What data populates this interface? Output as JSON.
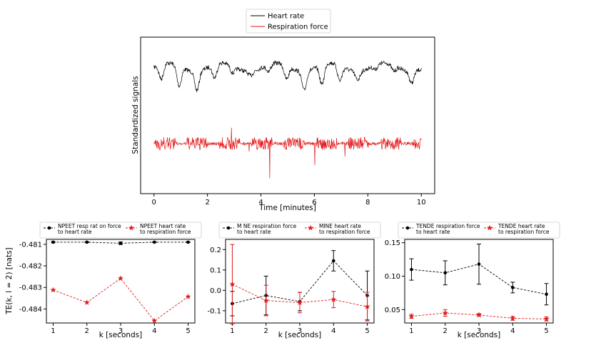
{
  "chart_data": [
    {
      "type": "line",
      "xlabel": "Time [minutes]",
      "ylabel": "Standardized signals",
      "xlim": [
        -0.5,
        10.5
      ],
      "xticks": [
        "0",
        "2",
        "4",
        "6",
        "8",
        "10"
      ],
      "yticks": [],
      "legend": "top",
      "series": [
        {
          "name": "Heart rate",
          "color": "#000000",
          "offset": 0.78
        },
        {
          "name": "Respiration force",
          "color": "#e31a1c",
          "offset": 0.32
        }
      ]
    },
    {
      "type": "line",
      "xlabel": "k [seconds]",
      "ylabel": "TE(k, l = 2) [nats]",
      "xlim": [
        0.8,
        5.2
      ],
      "ylim": [
        -0.48465,
        -0.48077
      ],
      "xticks": [
        "1",
        "2",
        "3",
        "4",
        "5"
      ],
      "yticks": [
        "-0.481",
        "-0.482",
        "-0.483",
        "-0.484"
      ],
      "ytick_values": [
        -0.481,
        -0.482,
        -0.483,
        -0.484
      ],
      "legend": "top",
      "series": [
        {
          "name": "NPEET respiration force to heart rate",
          "label_lines": [
            "NPEET resp rat on force",
            "to heart rate"
          ],
          "color": "#000000",
          "marker": "dot",
          "x": [
            1,
            2,
            3,
            4,
            5
          ],
          "y": [
            -0.4809,
            -0.4809,
            -0.48095,
            -0.4809,
            -0.4809
          ],
          "err": [
            3e-05,
            2e-05,
            6e-05,
            2e-05,
            2e-05
          ]
        },
        {
          "name": "NPEET heart rate to respiration force",
          "label_lines": [
            "NPEET heart rate",
            "to respiration force"
          ],
          "color": "#e31a1c",
          "marker": "star",
          "x": [
            1,
            2,
            3,
            4,
            5
          ],
          "y": [
            -0.48312,
            -0.4837,
            -0.48258,
            -0.48455,
            -0.48343
          ],
          "err": [
            0,
            0,
            0,
            0,
            0
          ]
        }
      ]
    },
    {
      "type": "line",
      "xlabel": "k [seconds]",
      "ylabel": "",
      "xlim": [
        0.8,
        5.2
      ],
      "ylim": [
        -0.16,
        0.25
      ],
      "xticks": [
        "1",
        "2",
        "3",
        "4",
        "5"
      ],
      "yticks": [
        "0.2",
        "0.1",
        "0.0",
        "-0.1"
      ],
      "ytick_values": [
        0.2,
        0.1,
        0.0,
        -0.1
      ],
      "legend": "top",
      "series": [
        {
          "name": "MINE respiration force to heart rate",
          "label_lines": [
            "M NE respiration force",
            "to heart rate"
          ],
          "color": "#000000",
          "marker": "dot",
          "x": [
            1,
            2,
            3,
            4,
            5
          ],
          "y": [
            -0.065,
            -0.025,
            -0.055,
            0.145,
            -0.025
          ],
          "err": [
            0.06,
            0.095,
            0.045,
            0.05,
            0.12
          ]
        },
        {
          "name": "MINE heart rate to respiration force",
          "label_lines": [
            "MINE heart rate",
            "to respiration force"
          ],
          "color": "#e31a1c",
          "marker": "star",
          "x": [
            1,
            2,
            3,
            4,
            5
          ],
          "y": [
            0.03,
            -0.05,
            -0.06,
            -0.045,
            -0.08
          ],
          "err": [
            0.195,
            0.075,
            0.05,
            0.04,
            0.07
          ]
        }
      ]
    },
    {
      "type": "line",
      "xlabel": "k [seconds]",
      "ylabel": "",
      "xlim": [
        0.8,
        5.2
      ],
      "ylim": [
        0.03,
        0.155
      ],
      "xticks": [
        "1",
        "2",
        "3",
        "4",
        "5"
      ],
      "yticks": [
        "0.15",
        "0.10",
        "0.05"
      ],
      "ytick_values": [
        0.15,
        0.1,
        0.05
      ],
      "legend": "top",
      "series": [
        {
          "name": "TENDE respiration force to heart rate",
          "label_lines": [
            "TENDE respiration force",
            "to heart rate"
          ],
          "color": "#000000",
          "marker": "dot",
          "x": [
            1,
            2,
            3,
            4,
            5
          ],
          "y": [
            0.11,
            0.105,
            0.118,
            0.083,
            0.073
          ],
          "err": [
            0.016,
            0.018,
            0.03,
            0.008,
            0.016
          ]
        },
        {
          "name": "TENDE heart rate to respiration force",
          "label_lines": [
            "TENDE heart rate",
            "to respiration force"
          ],
          "color": "#e31a1c",
          "marker": "star",
          "x": [
            1,
            2,
            3,
            4,
            5
          ],
          "y": [
            0.04,
            0.045,
            0.042,
            0.037,
            0.036
          ],
          "err": [
            0.003,
            0.005,
            0.002,
            0.003,
            0.003
          ]
        }
      ]
    }
  ]
}
